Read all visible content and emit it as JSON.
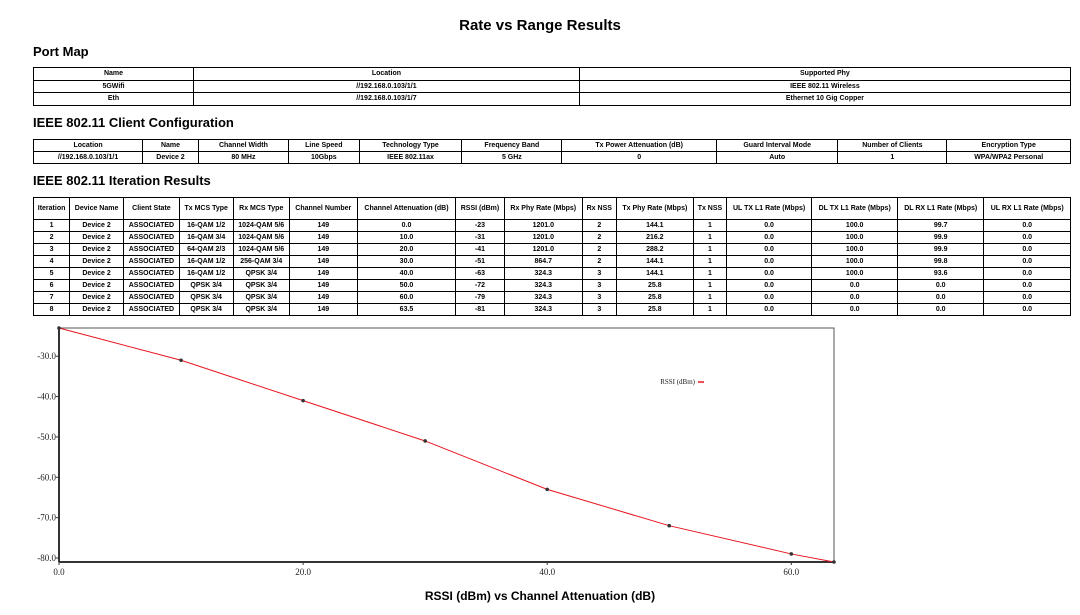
{
  "title": "Rate vs Range Results",
  "port_map": {
    "heading": "Port Map",
    "columns": [
      "Name",
      "Location",
      "Supported Phy"
    ],
    "rows": [
      [
        "5GWifi",
        "//192.168.0.103/1/1",
        "IEEE 802.11 Wireless"
      ],
      [
        "Eth",
        "//192.168.0.103/1/7",
        "Ethernet 10 Gig Copper"
      ]
    ]
  },
  "client_config": {
    "heading": "IEEE 802.11 Client Configuration",
    "columns": [
      "Location",
      "Name",
      "Channel Width",
      "Line Speed",
      "Technology Type",
      "Frequency Band",
      "Tx Power Attenuation (dB)",
      "Guard Interval Mode",
      "Number of Clients",
      "Encryption Type"
    ],
    "rows": [
      [
        "//192.168.0.103/1/1",
        "Device 2",
        "80 MHz",
        "10Gbps",
        "IEEE 802.11ax",
        "5 GHz",
        "0",
        "Auto",
        "1",
        "WPA/WPA2 Personal"
      ]
    ]
  },
  "iteration_results": {
    "heading": "IEEE 802.11 Iteration Results",
    "columns": [
      "Iteration",
      "Device Name",
      "Client State",
      "Tx MCS Type",
      "Rx MCS Type",
      "Channel Number",
      "Channel Attenuation (dB)",
      "RSSI (dBm)",
      "Rx Phy Rate (Mbps)",
      "Rx NSS",
      "Tx Phy Rate (Mbps)",
      "Tx NSS",
      "UL TX L1 Rate (Mbps)",
      "DL TX L1 Rate (Mbps)",
      "DL RX L1 Rate (Mbps)",
      "UL RX L1 Rate (Mbps)"
    ],
    "rows": [
      [
        "1",
        "Device 2",
        "ASSOCIATED",
        "16-QAM 1/2",
        "1024-QAM 5/6",
        "149",
        "0.0",
        "-23",
        "1201.0",
        "2",
        "144.1",
        "1",
        "0.0",
        "100.0",
        "99.7",
        "0.0"
      ],
      [
        "2",
        "Device 2",
        "ASSOCIATED",
        "16-QAM 3/4",
        "1024-QAM 5/6",
        "149",
        "10.0",
        "-31",
        "1201.0",
        "2",
        "216.2",
        "1",
        "0.0",
        "100.0",
        "99.9",
        "0.0"
      ],
      [
        "3",
        "Device 2",
        "ASSOCIATED",
        "64-QAM 2/3",
        "1024-QAM 5/6",
        "149",
        "20.0",
        "-41",
        "1201.0",
        "2",
        "288.2",
        "1",
        "0.0",
        "100.0",
        "99.9",
        "0.0"
      ],
      [
        "4",
        "Device 2",
        "ASSOCIATED",
        "16-QAM 1/2",
        "256-QAM 3/4",
        "149",
        "30.0",
        "-51",
        "864.7",
        "2",
        "144.1",
        "1",
        "0.0",
        "100.0",
        "99.8",
        "0.0"
      ],
      [
        "5",
        "Device 2",
        "ASSOCIATED",
        "16-QAM 1/2",
        "QPSK 3/4",
        "149",
        "40.0",
        "-63",
        "324.3",
        "3",
        "144.1",
        "1",
        "0.0",
        "100.0",
        "93.6",
        "0.0"
      ],
      [
        "6",
        "Device 2",
        "ASSOCIATED",
        "QPSK 3/4",
        "QPSK 3/4",
        "149",
        "50.0",
        "-72",
        "324.3",
        "3",
        "25.8",
        "1",
        "0.0",
        "0.0",
        "0.0",
        "0.0"
      ],
      [
        "7",
        "Device 2",
        "ASSOCIATED",
        "QPSK 3/4",
        "QPSK 3/4",
        "149",
        "60.0",
        "-79",
        "324.3",
        "3",
        "25.8",
        "1",
        "0.0",
        "0.0",
        "0.0",
        "0.0"
      ],
      [
        "8",
        "Device 2",
        "ASSOCIATED",
        "QPSK 3/4",
        "QPSK 3/4",
        "149",
        "63.5",
        "-81",
        "324.3",
        "3",
        "25.8",
        "1",
        "0.0",
        "0.0",
        "0.0",
        "0.0"
      ]
    ]
  },
  "chart_data": {
    "type": "line",
    "title": "RSSI (dBm) vs Channel Attenuation (dB)",
    "xlabel": "",
    "ylabel": "",
    "x": [
      0.0,
      10.0,
      20.0,
      30.0,
      40.0,
      50.0,
      60.0,
      63.5
    ],
    "series": [
      {
        "name": "RSSI (dBm)",
        "values": [
          -23,
          -31,
          -41,
          -51,
          -63,
          -72,
          -79,
          -81
        ],
        "color": "#e8141e"
      }
    ],
    "xlim": [
      0,
      63.5
    ],
    "ylim": [
      -81,
      -23
    ],
    "xticks": [
      "0.0",
      "20.0",
      "40.0",
      "60.0"
    ],
    "yticks": [
      "-30.0",
      "-40.0",
      "-50.0",
      "-60.0",
      "-70.0",
      "-80.0"
    ],
    "grid": false,
    "legend": "top-right"
  }
}
